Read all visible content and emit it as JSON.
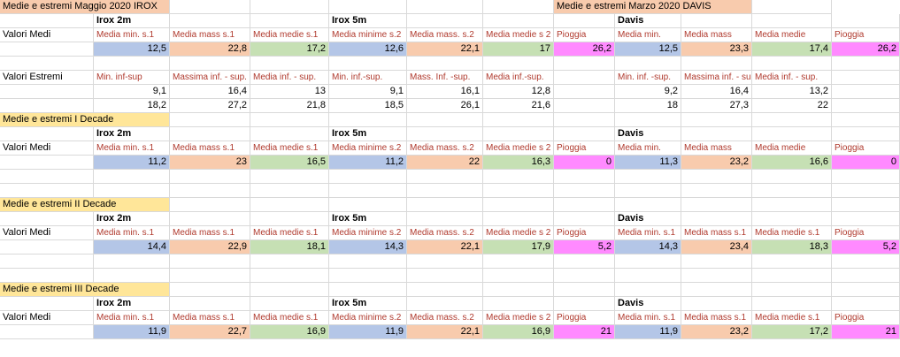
{
  "rows": [
    [
      {
        "t": "Medie e estremi Maggio 2020 IROX",
        "bg": "peach",
        "span": 2
      },
      {
        "t": ""
      },
      {
        "t": ""
      },
      {
        "t": ""
      },
      {
        "t": ""
      },
      {
        "t": ""
      },
      {
        "t": "Medie e estremi Marzo 2020 DAVIS",
        "bg": "peach",
        "span": 3
      },
      {
        "t": ""
      }
    ],
    [
      {
        "t": ""
      },
      {
        "t": "Irox 2m",
        "cls": "bold"
      },
      {
        "t": ""
      },
      {
        "t": ""
      },
      {
        "t": "Irox 5m",
        "cls": "bold"
      },
      {
        "t": ""
      },
      {
        "t": ""
      },
      {
        "t": ""
      },
      {
        "t": "Davis",
        "cls": "bold"
      },
      {
        "t": ""
      },
      {
        "t": ""
      },
      {
        "t": ""
      }
    ],
    [
      {
        "t": "Valori Medi"
      },
      {
        "t": "Media min. s.1",
        "cls": "lbl"
      },
      {
        "t": "Media mass s.1",
        "cls": "lbl"
      },
      {
        "t": "Media medie s.1",
        "cls": "lbl"
      },
      {
        "t": "Media minime s.2",
        "cls": "lbl"
      },
      {
        "t": "Media mass. s.2",
        "cls": "lbl"
      },
      {
        "t": "Media medie s 2",
        "cls": "lbl"
      },
      {
        "t": "Pioggia",
        "cls": "lbl"
      },
      {
        "t": "Media min.",
        "cls": "lbl"
      },
      {
        "t": "Media mass",
        "cls": "lbl"
      },
      {
        "t": "Media medie",
        "cls": "lbl"
      },
      {
        "t": "Pioggia",
        "cls": "lbl"
      }
    ],
    [
      {
        "t": ""
      },
      {
        "t": "12,5",
        "bg": "blue",
        "cls": "num"
      },
      {
        "t": "22,8",
        "bg": "orange",
        "cls": "num"
      },
      {
        "t": "17,2",
        "bg": "green",
        "cls": "num"
      },
      {
        "t": "12,6",
        "bg": "blue",
        "cls": "num"
      },
      {
        "t": "22,1",
        "bg": "orange",
        "cls": "num"
      },
      {
        "t": "17",
        "bg": "green",
        "cls": "num"
      },
      {
        "t": "26,2",
        "bg": "pink",
        "cls": "num"
      },
      {
        "t": "12,5",
        "bg": "blue",
        "cls": "num"
      },
      {
        "t": "23,3",
        "bg": "orange",
        "cls": "num"
      },
      {
        "t": "17,4",
        "bg": "green",
        "cls": "num"
      },
      {
        "t": "26,2",
        "bg": "pink",
        "cls": "num"
      }
    ],
    [
      {
        "t": ""
      },
      {
        "t": ""
      },
      {
        "t": ""
      },
      {
        "t": ""
      },
      {
        "t": ""
      },
      {
        "t": ""
      },
      {
        "t": ""
      },
      {
        "t": ""
      },
      {
        "t": ""
      },
      {
        "t": ""
      },
      {
        "t": ""
      },
      {
        "t": ""
      }
    ],
    [
      {
        "t": "Valori Estremi"
      },
      {
        "t": "Min. inf-sup",
        "cls": "lbl"
      },
      {
        "t": "Massima inf. - sup.",
        "cls": "lbl"
      },
      {
        "t": "Media inf. - sup.",
        "cls": "lbl"
      },
      {
        "t": "Min. inf.-sup.",
        "cls": "lbl"
      },
      {
        "t": "Mass. Inf. -sup.",
        "cls": "lbl"
      },
      {
        "t": "Media inf.-sup.",
        "cls": "lbl"
      },
      {
        "t": ""
      },
      {
        "t": "Min. inf. -sup.",
        "cls": "lbl"
      },
      {
        "t": "Massima inf. - su",
        "cls": "lbl"
      },
      {
        "t": "Media inf. - sup.",
        "cls": "lbl"
      },
      {
        "t": ""
      }
    ],
    [
      {
        "t": ""
      },
      {
        "t": "9,1",
        "cls": "num"
      },
      {
        "t": "16,4",
        "cls": "num"
      },
      {
        "t": "13",
        "cls": "num"
      },
      {
        "t": "9,1",
        "cls": "num"
      },
      {
        "t": "16,1",
        "cls": "num"
      },
      {
        "t": "12,8",
        "cls": "num"
      },
      {
        "t": ""
      },
      {
        "t": "9,2",
        "cls": "num"
      },
      {
        "t": "16,4",
        "cls": "num"
      },
      {
        "t": "13,2",
        "cls": "num"
      },
      {
        "t": ""
      }
    ],
    [
      {
        "t": ""
      },
      {
        "t": "18,2",
        "cls": "num"
      },
      {
        "t": "27,2",
        "cls": "num"
      },
      {
        "t": "21,8",
        "cls": "num"
      },
      {
        "t": "18,5",
        "cls": "num"
      },
      {
        "t": "26,1",
        "cls": "num"
      },
      {
        "t": "21,6",
        "cls": "num"
      },
      {
        "t": ""
      },
      {
        "t": "18",
        "cls": "num"
      },
      {
        "t": "27,3",
        "cls": "num"
      },
      {
        "t": "22",
        "cls": "num"
      },
      {
        "t": ""
      }
    ],
    [
      {
        "t": "Medie e estremi I Decade",
        "bg": "yellow",
        "span": 2
      },
      {
        "t": ""
      },
      {
        "t": ""
      },
      {
        "t": ""
      },
      {
        "t": ""
      },
      {
        "t": ""
      },
      {
        "t": ""
      },
      {
        "t": ""
      },
      {
        "t": ""
      },
      {
        "t": ""
      },
      {
        "t": ""
      }
    ],
    [
      {
        "t": ""
      },
      {
        "t": "Irox 2m",
        "cls": "bold"
      },
      {
        "t": ""
      },
      {
        "t": ""
      },
      {
        "t": "Irox 5m",
        "cls": "bold"
      },
      {
        "t": ""
      },
      {
        "t": ""
      },
      {
        "t": ""
      },
      {
        "t": "Davis",
        "cls": "bold"
      },
      {
        "t": ""
      },
      {
        "t": ""
      },
      {
        "t": ""
      }
    ],
    [
      {
        "t": "Valori Medi"
      },
      {
        "t": "Media min. s.1",
        "cls": "lbl"
      },
      {
        "t": "Media mass s.1",
        "cls": "lbl"
      },
      {
        "t": "Media medie s.1",
        "cls": "lbl"
      },
      {
        "t": "Media minime s.2",
        "cls": "lbl"
      },
      {
        "t": "Media mass. s.2",
        "cls": "lbl"
      },
      {
        "t": "Media medie s 2",
        "cls": "lbl"
      },
      {
        "t": "Pioggia",
        "cls": "lbl"
      },
      {
        "t": "Media min.",
        "cls": "lbl"
      },
      {
        "t": "Media mass",
        "cls": "lbl"
      },
      {
        "t": "Media medie",
        "cls": "lbl"
      },
      {
        "t": "Pioggia",
        "cls": "lbl"
      }
    ],
    [
      {
        "t": ""
      },
      {
        "t": "11,2",
        "bg": "blue",
        "cls": "num"
      },
      {
        "t": "23",
        "bg": "orange",
        "cls": "num"
      },
      {
        "t": "16,5",
        "bg": "green",
        "cls": "num"
      },
      {
        "t": "11,2",
        "bg": "blue",
        "cls": "num"
      },
      {
        "t": "22",
        "bg": "orange",
        "cls": "num"
      },
      {
        "t": "16,3",
        "bg": "green",
        "cls": "num"
      },
      {
        "t": "0",
        "bg": "pink",
        "cls": "num"
      },
      {
        "t": "11,3",
        "bg": "blue",
        "cls": "num"
      },
      {
        "t": "23,2",
        "bg": "orange",
        "cls": "num"
      },
      {
        "t": "16,6",
        "bg": "green",
        "cls": "num"
      },
      {
        "t": "0",
        "bg": "pink",
        "cls": "num"
      }
    ],
    [
      {
        "t": ""
      },
      {
        "t": ""
      },
      {
        "t": ""
      },
      {
        "t": ""
      },
      {
        "t": ""
      },
      {
        "t": ""
      },
      {
        "t": ""
      },
      {
        "t": ""
      },
      {
        "t": ""
      },
      {
        "t": ""
      },
      {
        "t": ""
      },
      {
        "t": ""
      }
    ],
    [
      {
        "t": ""
      },
      {
        "t": ""
      },
      {
        "t": ""
      },
      {
        "t": ""
      },
      {
        "t": ""
      },
      {
        "t": ""
      },
      {
        "t": ""
      },
      {
        "t": ""
      },
      {
        "t": ""
      },
      {
        "t": ""
      },
      {
        "t": ""
      },
      {
        "t": ""
      }
    ],
    [
      {
        "t": "Medie e estremi II Decade",
        "bg": "yellow",
        "span": 2
      },
      {
        "t": ""
      },
      {
        "t": ""
      },
      {
        "t": ""
      },
      {
        "t": ""
      },
      {
        "t": ""
      },
      {
        "t": ""
      },
      {
        "t": ""
      },
      {
        "t": ""
      },
      {
        "t": ""
      },
      {
        "t": ""
      }
    ],
    [
      {
        "t": ""
      },
      {
        "t": "Irox 2m",
        "cls": "bold"
      },
      {
        "t": ""
      },
      {
        "t": ""
      },
      {
        "t": "Irox 5m",
        "cls": "bold"
      },
      {
        "t": ""
      },
      {
        "t": ""
      },
      {
        "t": ""
      },
      {
        "t": "Davis",
        "cls": "bold"
      },
      {
        "t": ""
      },
      {
        "t": ""
      },
      {
        "t": ""
      }
    ],
    [
      {
        "t": "Valori Medi"
      },
      {
        "t": "Media min. s.1",
        "cls": "lbl"
      },
      {
        "t": "Media mass s.1",
        "cls": "lbl"
      },
      {
        "t": "Media medie s.1",
        "cls": "lbl"
      },
      {
        "t": "Media minime s.2",
        "cls": "lbl"
      },
      {
        "t": "Media mass. s.2",
        "cls": "lbl"
      },
      {
        "t": "Media medie s 2",
        "cls": "lbl"
      },
      {
        "t": "Pioggia",
        "cls": "lbl"
      },
      {
        "t": "Media min. s.1",
        "cls": "lbl"
      },
      {
        "t": "Media mass s.1",
        "cls": "lbl"
      },
      {
        "t": "Media medie s.1",
        "cls": "lbl"
      },
      {
        "t": "Pioggia",
        "cls": "lbl"
      }
    ],
    [
      {
        "t": ""
      },
      {
        "t": "14,4",
        "bg": "blue",
        "cls": "num"
      },
      {
        "t": "22,9",
        "bg": "orange",
        "cls": "num"
      },
      {
        "t": "18,1",
        "bg": "green",
        "cls": "num"
      },
      {
        "t": "14,3",
        "bg": "blue",
        "cls": "num"
      },
      {
        "t": "22,1",
        "bg": "orange",
        "cls": "num"
      },
      {
        "t": "17,9",
        "bg": "green",
        "cls": "num"
      },
      {
        "t": "5,2",
        "bg": "pink",
        "cls": "num"
      },
      {
        "t": "14,3",
        "bg": "blue",
        "cls": "num"
      },
      {
        "t": "23,4",
        "bg": "orange",
        "cls": "num"
      },
      {
        "t": "18,3",
        "bg": "green",
        "cls": "num"
      },
      {
        "t": "5,2",
        "bg": "pink",
        "cls": "num"
      }
    ],
    [
      {
        "t": ""
      },
      {
        "t": ""
      },
      {
        "t": ""
      },
      {
        "t": ""
      },
      {
        "t": ""
      },
      {
        "t": ""
      },
      {
        "t": ""
      },
      {
        "t": ""
      },
      {
        "t": ""
      },
      {
        "t": ""
      },
      {
        "t": ""
      },
      {
        "t": ""
      }
    ],
    [
      {
        "t": ""
      },
      {
        "t": ""
      },
      {
        "t": ""
      },
      {
        "t": ""
      },
      {
        "t": ""
      },
      {
        "t": ""
      },
      {
        "t": ""
      },
      {
        "t": ""
      },
      {
        "t": ""
      },
      {
        "t": ""
      },
      {
        "t": ""
      },
      {
        "t": ""
      }
    ],
    [
      {
        "t": "Medie e estremi III Decade",
        "bg": "yellow",
        "span": 2
      },
      {
        "t": ""
      },
      {
        "t": ""
      },
      {
        "t": ""
      },
      {
        "t": ""
      },
      {
        "t": ""
      },
      {
        "t": ""
      },
      {
        "t": ""
      },
      {
        "t": ""
      },
      {
        "t": ""
      },
      {
        "t": ""
      }
    ],
    [
      {
        "t": ""
      },
      {
        "t": "Irox 2m",
        "cls": "bold"
      },
      {
        "t": ""
      },
      {
        "t": ""
      },
      {
        "t": "Irox 5m",
        "cls": "bold"
      },
      {
        "t": ""
      },
      {
        "t": ""
      },
      {
        "t": ""
      },
      {
        "t": "Davis",
        "cls": "bold"
      },
      {
        "t": ""
      },
      {
        "t": ""
      },
      {
        "t": ""
      }
    ],
    [
      {
        "t": "Valori Medi"
      },
      {
        "t": "Media min. s.1",
        "cls": "lbl"
      },
      {
        "t": "Media mass s.1",
        "cls": "lbl"
      },
      {
        "t": "Media medie s.1",
        "cls": "lbl"
      },
      {
        "t": "Media minime s.2",
        "cls": "lbl"
      },
      {
        "t": "Media mass. s.2",
        "cls": "lbl"
      },
      {
        "t": "Media medie s 2",
        "cls": "lbl"
      },
      {
        "t": "Pioggia",
        "cls": "lbl"
      },
      {
        "t": "Media min. s.1",
        "cls": "lbl"
      },
      {
        "t": "Media mass s.1",
        "cls": "lbl"
      },
      {
        "t": "Media medie s.1",
        "cls": "lbl"
      },
      {
        "t": "Pioggia",
        "cls": "lbl"
      }
    ],
    [
      {
        "t": ""
      },
      {
        "t": "11,9",
        "bg": "blue",
        "cls": "num"
      },
      {
        "t": "22,7",
        "bg": "orange",
        "cls": "num"
      },
      {
        "t": "16,9",
        "bg": "green",
        "cls": "num"
      },
      {
        "t": "11,9",
        "bg": "blue",
        "cls": "num"
      },
      {
        "t": "22,1",
        "bg": "orange",
        "cls": "num"
      },
      {
        "t": "16,9",
        "bg": "green",
        "cls": "num"
      },
      {
        "t": "21",
        "bg": "pink",
        "cls": "num"
      },
      {
        "t": "11,9",
        "bg": "blue",
        "cls": "num"
      },
      {
        "t": "23,2",
        "bg": "orange",
        "cls": "num"
      },
      {
        "t": "17,2",
        "bg": "green",
        "cls": "num"
      },
      {
        "t": "21",
        "bg": "pink",
        "cls": "num"
      }
    ]
  ]
}
